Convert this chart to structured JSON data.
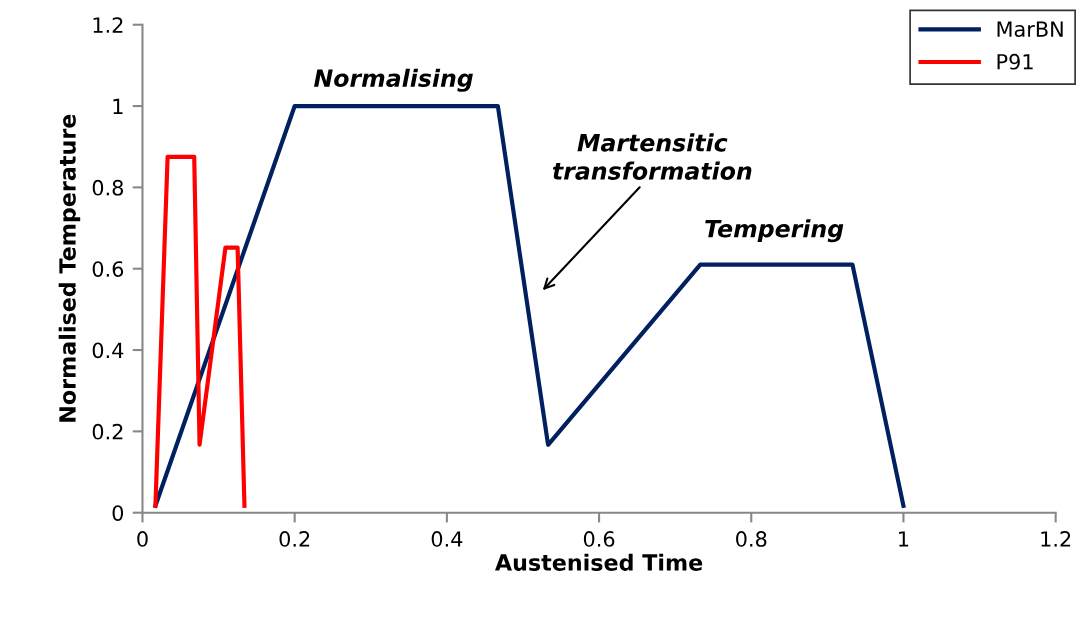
{
  "chart_data": {
    "type": "line",
    "xlabel": "Austenised Time",
    "ylabel": "Normalised Temperature",
    "series": [
      {
        "name": "MarBN",
        "color": "#002060",
        "x": [
          0.017,
          0.2,
          0.467,
          0.533,
          0.733,
          0.933,
          1.0
        ],
        "values": [
          0.017,
          1.0,
          1.0,
          0.167,
          0.61,
          0.61,
          0.017
        ]
      },
      {
        "name": "P91",
        "color": "#ff0000",
        "x": [
          0.017,
          0.033,
          0.068,
          0.075,
          0.109,
          0.125,
          0.134
        ],
        "values": [
          0.017,
          0.875,
          0.875,
          0.167,
          0.652,
          0.652,
          0.017
        ]
      }
    ],
    "xlim": [
      0,
      1.2
    ],
    "ylim": [
      0,
      1.2
    ],
    "xticks": [
      0,
      0.2,
      0.4,
      0.6,
      0.8,
      1,
      1.2
    ],
    "yticks": [
      0,
      0.2,
      0.4,
      0.6,
      0.8,
      1,
      1.2
    ],
    "annotations": [
      "Normalising",
      "Martensitic\ntransformation",
      "Tempering"
    ],
    "grid": false,
    "legend": "top right",
    "marker": "none",
    "line_style": "solid"
  }
}
